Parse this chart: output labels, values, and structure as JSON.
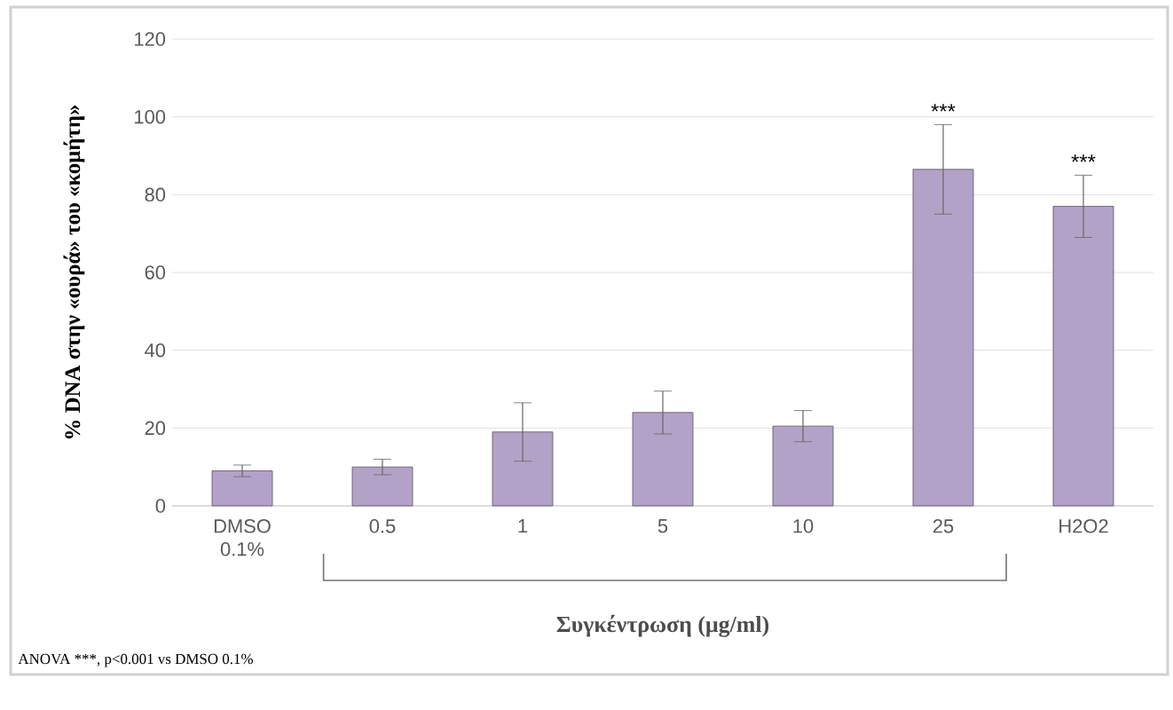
{
  "chart_data": {
    "type": "bar",
    "categories": [
      "DMSO 0.1%",
      "0.5",
      "1",
      "5",
      "10",
      "25",
      "H2O2"
    ],
    "values": [
      9,
      10,
      19,
      24,
      20.5,
      86.5,
      77
    ],
    "errors": [
      1.5,
      2,
      7.5,
      5.5,
      4,
      11.5,
      8
    ],
    "color": "#b3a2c7",
    "ylabel": "% DNA στην «ουρά» του «κομήτη»",
    "xlabel": "Συγκέντρωση (μg/ml)",
    "ylim": [
      0,
      120
    ],
    "yticks": [
      0,
      20,
      40,
      60,
      80,
      100,
      120
    ],
    "grid": "y",
    "annotations": [
      {
        "text": "***",
        "x": "25",
        "y": 99
      },
      {
        "text": "***",
        "x": "H2O2",
        "y": 86
      },
      "ANOVA ***, p<0.001 vs DMSO 0.1%"
    ]
  }
}
